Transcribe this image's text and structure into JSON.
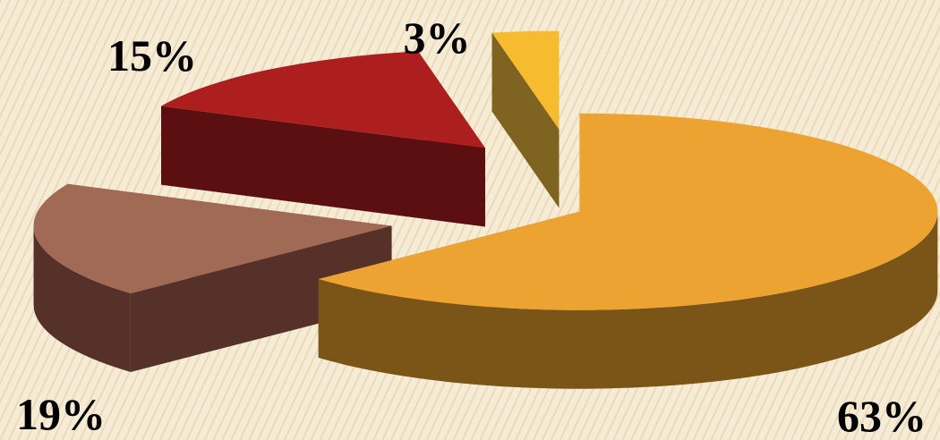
{
  "chart_data": {
    "type": "pie",
    "variant": "3d-exploded",
    "title": "",
    "legend": "none",
    "slices": [
      {
        "value": 63,
        "label": "63%",
        "color": "#eca331",
        "side_color": "#7b5418"
      },
      {
        "value": 19,
        "label": "19%",
        "color": "#a06a55",
        "side_color": "#55312a"
      },
      {
        "value": 15,
        "label": "15%",
        "color": "#ad1e1e",
        "side_color": "#5c0f10"
      },
      {
        "value": 3,
        "label": "3%",
        "color": "#f6bb2e",
        "side_color": "#7f6320"
      }
    ]
  }
}
